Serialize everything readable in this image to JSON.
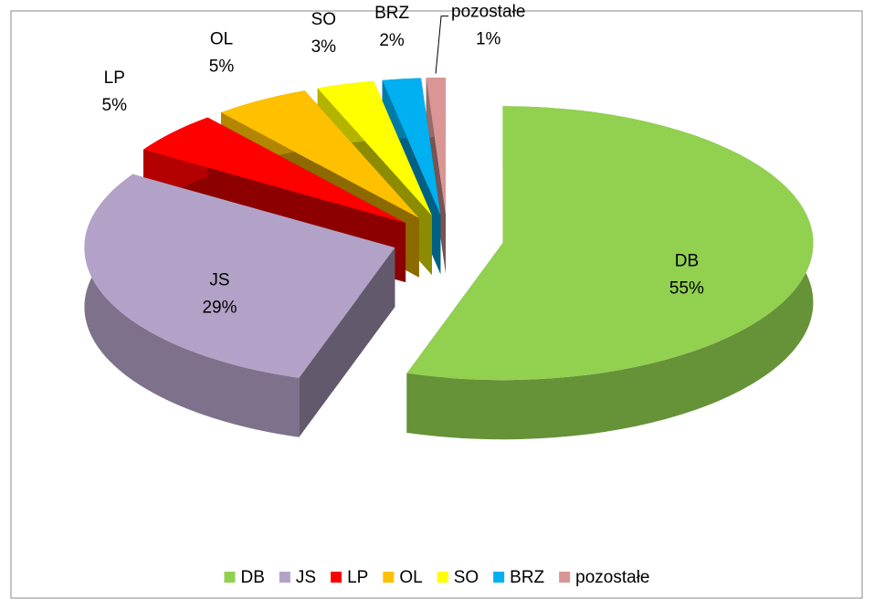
{
  "chart_data": {
    "type": "pie3d",
    "categories": [
      "DB",
      "JS",
      "LP",
      "OL",
      "SO",
      "BRZ",
      "pozostałe"
    ],
    "values": [
      55,
      29,
      5,
      5,
      3,
      2,
      1
    ],
    "value_labels": [
      "55%",
      "29%",
      "5%",
      "5%",
      "3%",
      "2%",
      "1%"
    ],
    "colors": [
      "#92d050",
      "#b3a2c7",
      "#ff0000",
      "#ffc000",
      "#ffff00",
      "#00b0f0",
      "#d99694"
    ],
    "legend": "bottom"
  }
}
